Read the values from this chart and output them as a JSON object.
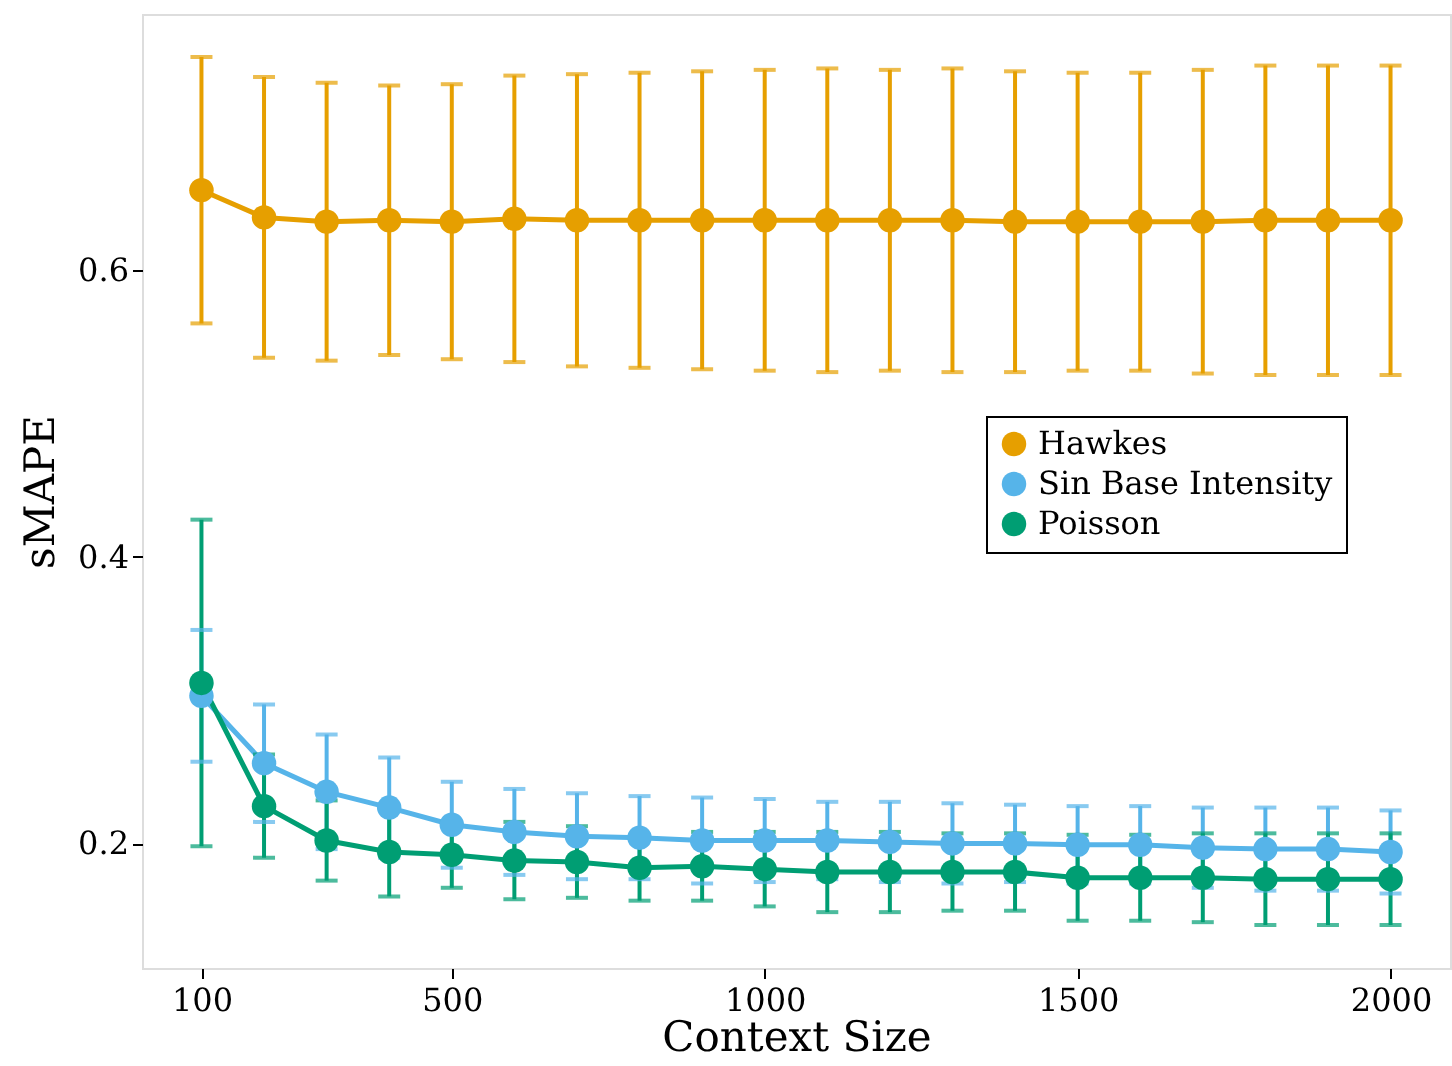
{
  "chart_data": {
    "type": "line",
    "xlabel": "Context Size",
    "ylabel": "sMAPE",
    "x": [
      100,
      200,
      300,
      400,
      500,
      600,
      700,
      800,
      900,
      1000,
      1100,
      1200,
      1300,
      1400,
      1500,
      1600,
      1700,
      1800,
      1900,
      2000
    ],
    "series": [
      {
        "name": "Hawkes",
        "color": "#e69f00",
        "values": [
          0.656,
          0.637,
          0.634,
          0.635,
          0.634,
          0.636,
          0.635,
          0.635,
          0.635,
          0.635,
          0.635,
          0.635,
          0.635,
          0.634,
          0.634,
          0.634,
          0.634,
          0.635,
          0.635,
          0.635
        ],
        "errors": [
          0.093,
          0.098,
          0.097,
          0.094,
          0.096,
          0.1,
          0.102,
          0.103,
          0.104,
          0.105,
          0.106,
          0.105,
          0.106,
          0.105,
          0.104,
          0.104,
          0.106,
          0.108,
          0.108,
          0.108
        ]
      },
      {
        "name": "Sin Base Intensity",
        "color": "#56b4e9",
        "values": [
          0.303,
          0.256,
          0.236,
          0.225,
          0.213,
          0.208,
          0.205,
          0.204,
          0.202,
          0.202,
          0.202,
          0.201,
          0.2,
          0.2,
          0.199,
          0.199,
          0.197,
          0.196,
          0.196,
          0.194
        ],
        "errors": [
          0.046,
          0.041,
          0.04,
          0.035,
          0.03,
          0.03,
          0.03,
          0.029,
          0.03,
          0.029,
          0.027,
          0.028,
          0.028,
          0.027,
          0.027,
          0.027,
          0.028,
          0.029,
          0.029,
          0.029
        ]
      },
      {
        "name": "Poisson",
        "color": "#009e73",
        "values": [
          0.312,
          0.226,
          0.202,
          0.194,
          0.192,
          0.188,
          0.187,
          0.183,
          0.184,
          0.182,
          0.18,
          0.18,
          0.18,
          0.18,
          0.176,
          0.176,
          0.176,
          0.175,
          0.175,
          0.175
        ],
        "errors": [
          0.114,
          0.036,
          0.028,
          0.031,
          0.023,
          0.027,
          0.025,
          0.023,
          0.024,
          0.026,
          0.028,
          0.028,
          0.027,
          0.027,
          0.03,
          0.03,
          0.031,
          0.032,
          0.032,
          0.032
        ]
      }
    ],
    "xlim": [
      5,
      2095
    ],
    "xticks": [
      100,
      500,
      1000,
      1500,
      2000
    ],
    "ylim": [
      0.113,
      0.779
    ],
    "yticks": [
      0.2,
      0.4,
      0.6
    ],
    "marker": "circle",
    "grid": false,
    "legend": "right"
  }
}
